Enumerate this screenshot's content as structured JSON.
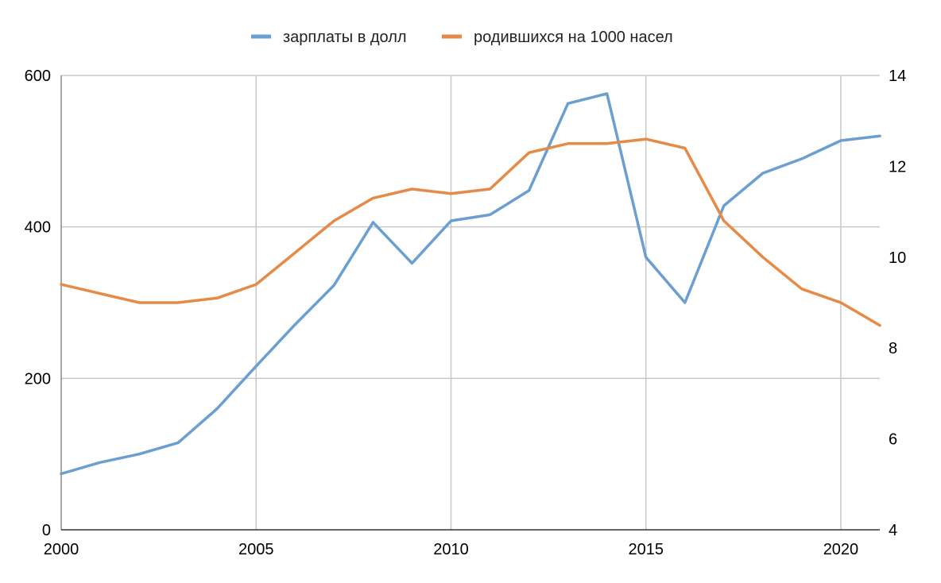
{
  "chart_data": {
    "type": "line",
    "x": [
      2000,
      2001,
      2002,
      2003,
      2004,
      2005,
      2006,
      2007,
      2008,
      2009,
      2010,
      2011,
      2012,
      2013,
      2014,
      2015,
      2016,
      2017,
      2018,
      2019,
      2020,
      2021
    ],
    "series": [
      {
        "name": "зарплаты в долл",
        "axis": "left",
        "color": "#6a9fd0",
        "values": [
          74,
          89,
          100,
          115,
          160,
          216,
          271,
          323,
          406,
          352,
          408,
          416,
          448,
          563,
          576,
          360,
          300,
          428,
          471,
          490,
          514,
          520
        ]
      },
      {
        "name": "родившихся на 1000 насел",
        "axis": "right",
        "color": "#e58a47",
        "values": [
          9.4,
          9.2,
          9.0,
          9.0,
          9.1,
          9.4,
          10.1,
          10.8,
          11.3,
          11.5,
          11.4,
          11.5,
          12.3,
          12.5,
          12.5,
          12.6,
          12.4,
          10.8,
          10.0,
          9.3,
          9.0,
          8.5
        ]
      }
    ],
    "xticks": [
      "2000",
      "2005",
      "2010",
      "2015",
      "2020"
    ],
    "xtick_values": [
      2000,
      2005,
      2010,
      2015,
      2020
    ],
    "yticks_left": [
      "0",
      "200",
      "400",
      "600"
    ],
    "yticks_left_values": [
      0,
      200,
      400,
      600
    ],
    "yticks_right": [
      "4",
      "6",
      "8",
      "10",
      "12",
      "14"
    ],
    "yticks_right_values": [
      4,
      6,
      8,
      10,
      12,
      14
    ],
    "xlim": [
      2000,
      2021
    ],
    "ylim_left": [
      0,
      600
    ],
    "ylim_right": [
      4,
      14
    ],
    "grid": true,
    "legend_position": "top"
  }
}
